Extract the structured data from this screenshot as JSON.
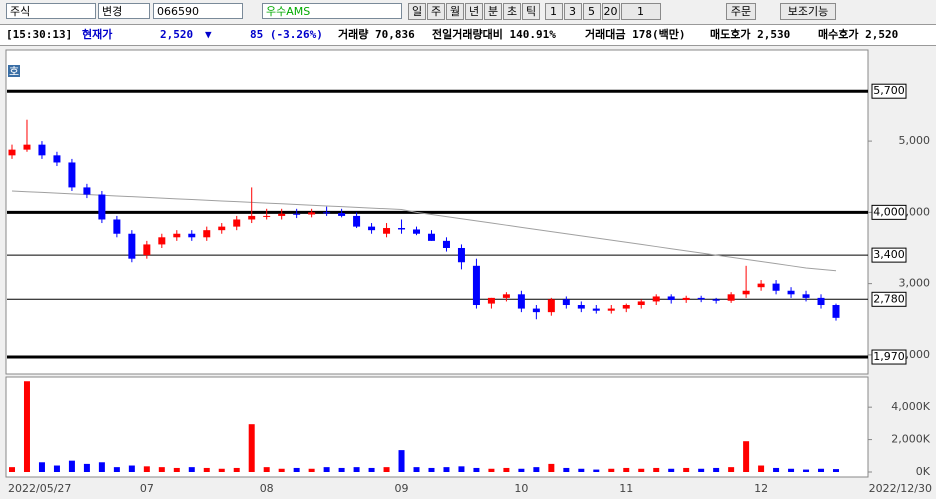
{
  "toolbar": {
    "market": "주식",
    "change": "변경",
    "code": "066590",
    "name": "우수AMS",
    "periods": [
      "일",
      "주",
      "월",
      "년",
      "분",
      "초",
      "틱"
    ],
    "spans": [
      "1",
      "3",
      "5",
      "20"
    ],
    "count": "1",
    "order": "주문",
    "aux": "보조기능"
  },
  "info": {
    "time": "[15:30:13]",
    "price_label": "현재가",
    "price": "2,520",
    "arrow": "▼",
    "change": "85 (-3.26%)",
    "volume": "거래량 70,836",
    "prev_ratio": "전일거래량대비 140.91%",
    "amount": "거래대금 178(백만)",
    "ask": "매도호가 2,530",
    "bid": "매수호가 2,520"
  },
  "panel_icon": "호",
  "chart_data": {
    "type": "candlestick",
    "categories": [
      "2022/05/27",
      null,
      null,
      null,
      null,
      null,
      null,
      null,
      null,
      "07",
      null,
      null,
      null,
      null,
      null,
      null,
      null,
      "08",
      null,
      null,
      null,
      null,
      null,
      null,
      null,
      null,
      "09",
      null,
      null,
      null,
      null,
      null,
      null,
      null,
      "10",
      null,
      null,
      null,
      null,
      null,
      null,
      "11",
      null,
      null,
      null,
      null,
      null,
      null,
      null,
      null,
      "12",
      null,
      null,
      null,
      null,
      "2022/12/30"
    ],
    "open": [
      4800,
      4880,
      4950,
      4800,
      4700,
      4350,
      4250,
      3900,
      3700,
      3400,
      3550,
      3650,
      3700,
      3650,
      3750,
      3800,
      3900,
      3950,
      3950,
      3980,
      3970,
      4000,
      3990,
      3950,
      3800,
      3700,
      3780,
      3760,
      3700,
      3600,
      3500,
      3250,
      2720,
      2800,
      2850,
      2650,
      2600,
      2780,
      2700,
      2650,
      2620,
      2650,
      2700,
      2750,
      2820,
      2770,
      2800,
      2780,
      2760,
      2850,
      2950,
      3000,
      2900,
      2850,
      2800,
      2700
    ],
    "high": [
      4950,
      5300,
      5000,
      4850,
      4750,
      4400,
      4300,
      3950,
      3750,
      3600,
      3700,
      3750,
      3750,
      3800,
      3850,
      3950,
      4350,
      4050,
      4050,
      4050,
      4050,
      4080,
      4050,
      4000,
      3850,
      3850,
      3900,
      3800,
      3750,
      3650,
      3550,
      3350,
      2800,
      2880,
      2900,
      2700,
      2800,
      2820,
      2750,
      2700,
      2700,
      2720,
      2780,
      2850,
      2850,
      2830,
      2830,
      2800,
      2880,
      3250,
      3050,
      3050,
      2950,
      2900,
      2850,
      2720
    ],
    "low": [
      4750,
      4850,
      4750,
      4650,
      4300,
      4200,
      3850,
      3650,
      3300,
      3350,
      3500,
      3600,
      3600,
      3600,
      3700,
      3750,
      3850,
      3900,
      3900,
      3920,
      3930,
      3950,
      3930,
      3780,
      3700,
      3650,
      3700,
      3680,
      3600,
      3450,
      3200,
      2650,
      2650,
      2750,
      2600,
      2500,
      2550,
      2650,
      2600,
      2580,
      2580,
      2600,
      2650,
      2700,
      2720,
      2730,
      2740,
      2720,
      2730,
      2800,
      2900,
      2850,
      2800,
      2750,
      2650,
      2480
    ],
    "close": [
      4880,
      4950,
      4800,
      4700,
      4350,
      4250,
      3900,
      3700,
      3350,
      3550,
      3650,
      3700,
      3650,
      3750,
      3800,
      3900,
      3950,
      3950,
      3980,
      3970,
      4000,
      3990,
      3950,
      3800,
      3750,
      3780,
      3760,
      3700,
      3600,
      3500,
      3300,
      2700,
      2800,
      2850,
      2650,
      2600,
      2780,
      2700,
      2650,
      2620,
      2650,
      2700,
      2750,
      2820,
      2770,
      2800,
      2780,
      2760,
      2850,
      2900,
      3000,
      2900,
      2850,
      2800,
      2700,
      2520
    ],
    "up_color": "#ff0000",
    "down_color": "#0000ff",
    "ma": {
      "color": "#a0a0a0",
      "values": [
        4300,
        4290,
        4280,
        4270,
        4260,
        4250,
        4240,
        4230,
        4220,
        4210,
        4200,
        4190,
        4180,
        4170,
        4160,
        4150,
        4140,
        4130,
        4120,
        4110,
        4100,
        4090,
        4080,
        4070,
        4060,
        4050,
        4040,
        4000,
        3970,
        3940,
        3910,
        3880,
        3850,
        3820,
        3790,
        3760,
        3730,
        3700,
        3670,
        3640,
        3610,
        3580,
        3550,
        3520,
        3490,
        3460,
        3430,
        3400,
        3370,
        3340,
        3310,
        3280,
        3250,
        3220,
        3200,
        3180
      ]
    },
    "ylim": [
      1760,
      6250
    ],
    "yticks": [
      {
        "value": 5000,
        "label": "5,000"
      },
      {
        "value": 4000,
        "label": "4,000"
      },
      {
        "value": 3000,
        "label": "3,000"
      },
      {
        "value": 2000,
        "label": "2,000"
      }
    ],
    "levels": [
      {
        "value": 5700,
        "label": "5,700",
        "bold": true
      },
      {
        "value": 4000,
        "label": "4,000",
        "bold": true
      },
      {
        "value": 3400,
        "label": "3,400",
        "bold": false
      },
      {
        "value": 2780,
        "label": "2,780",
        "bold": false
      },
      {
        "value": 1970,
        "label": "1,970",
        "bold": true
      }
    ],
    "volume": [
      300,
      5600,
      600,
      400,
      700,
      500,
      600,
      300,
      400,
      350,
      300,
      250,
      300,
      250,
      200,
      250,
      2950,
      300,
      200,
      250,
      200,
      300,
      250,
      300,
      250,
      300,
      1350,
      300,
      250,
      300,
      350,
      250,
      200,
      250,
      200,
      300,
      500,
      250,
      200,
      150,
      200,
      250,
      200,
      250,
      200,
      250,
      200,
      250,
      300,
      1900,
      400,
      250,
      200,
      150,
      200,
      180
    ],
    "volume_ylim": [
      0,
      5800
    ],
    "volume_yticks": [
      {
        "value": 4000,
        "label": "4,000K"
      },
      {
        "value": 2000,
        "label": "2,000K"
      },
      {
        "value": 0,
        "label": "0K"
      }
    ]
  }
}
